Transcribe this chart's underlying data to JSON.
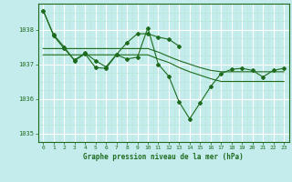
{
  "background_color": "#c5eced",
  "plot_bg_color": "#c5eced",
  "line_color": "#1e6b1e",
  "grid_major_color": "#ffffff",
  "grid_minor_color": "#b8e8d8",
  "xlabel": "Graphe pression niveau de la mer (hPa)",
  "ylim": [
    1034.75,
    1038.75
  ],
  "xlim": [
    -0.5,
    23.5
  ],
  "yticks": [
    1035,
    1036,
    1037,
    1038
  ],
  "xticks": [
    0,
    1,
    2,
    3,
    4,
    5,
    6,
    7,
    8,
    9,
    10,
    11,
    12,
    13,
    14,
    15,
    16,
    17,
    18,
    19,
    20,
    21,
    22,
    23
  ],
  "series_main": [
    1038.55,
    1037.85,
    1037.5,
    1037.1,
    1037.3,
    1036.9,
    1036.88,
    1037.27,
    1037.15,
    1037.2,
    1038.05,
    1037.0,
    1036.65,
    1035.9,
    1035.42,
    1035.88,
    1036.35,
    1036.73,
    1036.85,
    1036.88,
    1036.82,
    1036.63,
    1036.82,
    1036.88
  ],
  "series_flat1": [
    1037.27,
    1037.27,
    1037.27,
    1037.27,
    1037.27,
    1037.27,
    1037.27,
    1037.27,
    1037.27,
    1037.27,
    1037.27,
    1037.15,
    1037.05,
    1036.9,
    1036.78,
    1036.68,
    1036.58,
    1036.5,
    1036.5,
    1036.5,
    1036.5,
    1036.5,
    1036.5,
    1036.5
  ],
  "series_flat2": [
    1037.45,
    1037.45,
    1037.45,
    1037.45,
    1037.45,
    1037.45,
    1037.45,
    1037.45,
    1037.45,
    1037.45,
    1037.45,
    1037.35,
    1037.22,
    1037.1,
    1037.0,
    1036.9,
    1036.82,
    1036.78,
    1036.78,
    1036.78,
    1036.78,
    1036.78,
    1036.78,
    1036.78
  ],
  "series_partial_x": [
    0,
    1,
    2,
    3,
    4,
    5,
    6,
    7,
    8,
    9,
    10,
    11,
    12,
    13
  ],
  "series_partial_y": [
    1038.55,
    1037.82,
    1037.45,
    1037.12,
    1037.32,
    1037.1,
    1036.92,
    1037.28,
    1037.62,
    1037.88,
    1037.88,
    1037.78,
    1037.72,
    1037.52
  ]
}
